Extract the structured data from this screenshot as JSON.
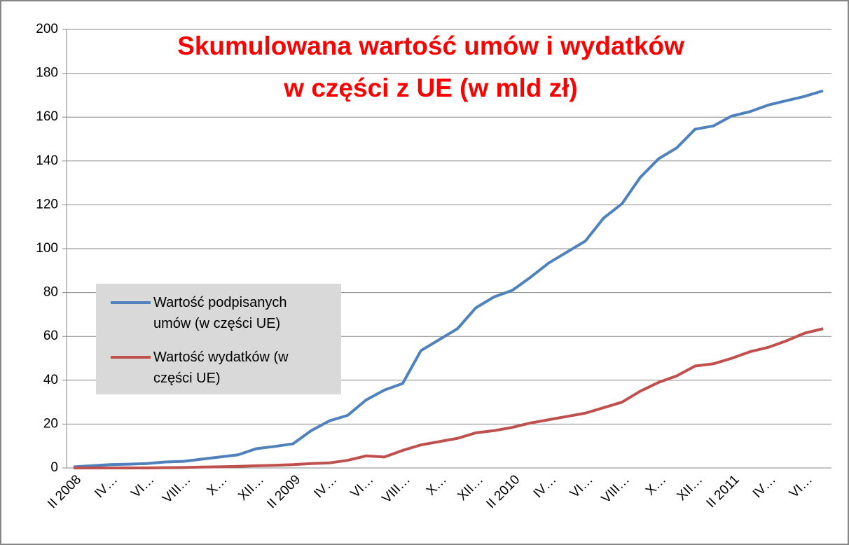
{
  "chart_data": {
    "type": "line",
    "title": [
      "Skumulowana wartość umów i wydatków",
      "w części z UE (w mld zł)"
    ],
    "title_color": "#ff0000",
    "categories": [
      "II 2008",
      null,
      "IV…",
      null,
      "VI…",
      null,
      "VIII…",
      null,
      "X…",
      null,
      "XII…",
      null,
      "II 2009",
      null,
      "IV…",
      null,
      "VI…",
      null,
      "VIII…",
      null,
      "X…",
      null,
      "XII…",
      null,
      "II 2010",
      null,
      "IV…",
      null,
      "VI…",
      null,
      "VIII…",
      null,
      "X…",
      null,
      "XII…",
      null,
      "II 2011",
      null,
      "IV…",
      null,
      "VI…",
      null
    ],
    "series": [
      {
        "name": "Wartość podpisanych umów (w części UE)",
        "color": "#4f81bd",
        "values": [
          0.5,
          1,
          1.5,
          1.7,
          2,
          2.7,
          3,
          4,
          5,
          6,
          8.8,
          9.8,
          11,
          17,
          21.5,
          24,
          31,
          35.5,
          38.5,
          53.5,
          58.5,
          63.5,
          73,
          78,
          81,
          87,
          93.5,
          98.5,
          103.5,
          114,
          120.5,
          132.5,
          141,
          146,
          154.5,
          156,
          160.5,
          162.5,
          165.5,
          167.5,
          169.5,
          172
        ]
      },
      {
        "name": "Wartość wydatków (w części UE)",
        "color": "#c0504d",
        "values": [
          0,
          0,
          0,
          0,
          0,
          0.1,
          0.2,
          0.4,
          0.5,
          0.7,
          1,
          1.2,
          1.5,
          2,
          2.3,
          3.5,
          5.5,
          5,
          8,
          10.5,
          12,
          13.5,
          16,
          17,
          18.5,
          20.5,
          22,
          23.5,
          25,
          27.5,
          30,
          35,
          39,
          42,
          46.5,
          47.5,
          50,
          53,
          55,
          58,
          61.5,
          63.5
        ]
      }
    ],
    "ylim": [
      0,
      200
    ],
    "yticks": [
      0,
      20,
      40,
      60,
      80,
      100,
      120,
      140,
      160,
      180,
      200
    ],
    "grid": true,
    "legend": "left"
  }
}
